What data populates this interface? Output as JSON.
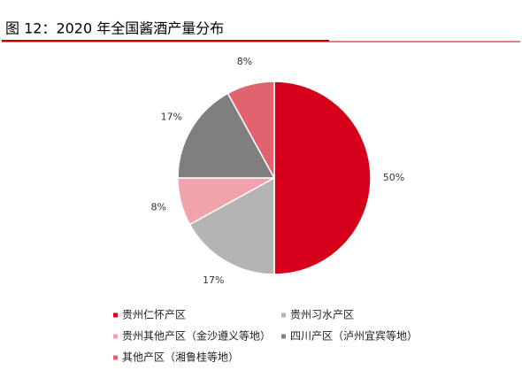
{
  "chart_data": {
    "type": "pie",
    "title": "图 12：2020 年全国酱酒产量分布",
    "categories": [
      "贵州仁怀产区",
      "贵州习水产区",
      "贵州其他产区（金沙遵义等地）",
      "四川产区（泸州宜宾等地）",
      "其他产区（湘鲁桂等地）"
    ],
    "values": [
      50,
      17,
      8,
      17,
      8
    ],
    "value_labels": [
      "50%",
      "17%",
      "8%",
      "17%",
      "8%"
    ],
    "colors": [
      "#d7001a",
      "#b4b4b4",
      "#f0a3ab",
      "#7f7f7f",
      "#e0636f"
    ]
  }
}
